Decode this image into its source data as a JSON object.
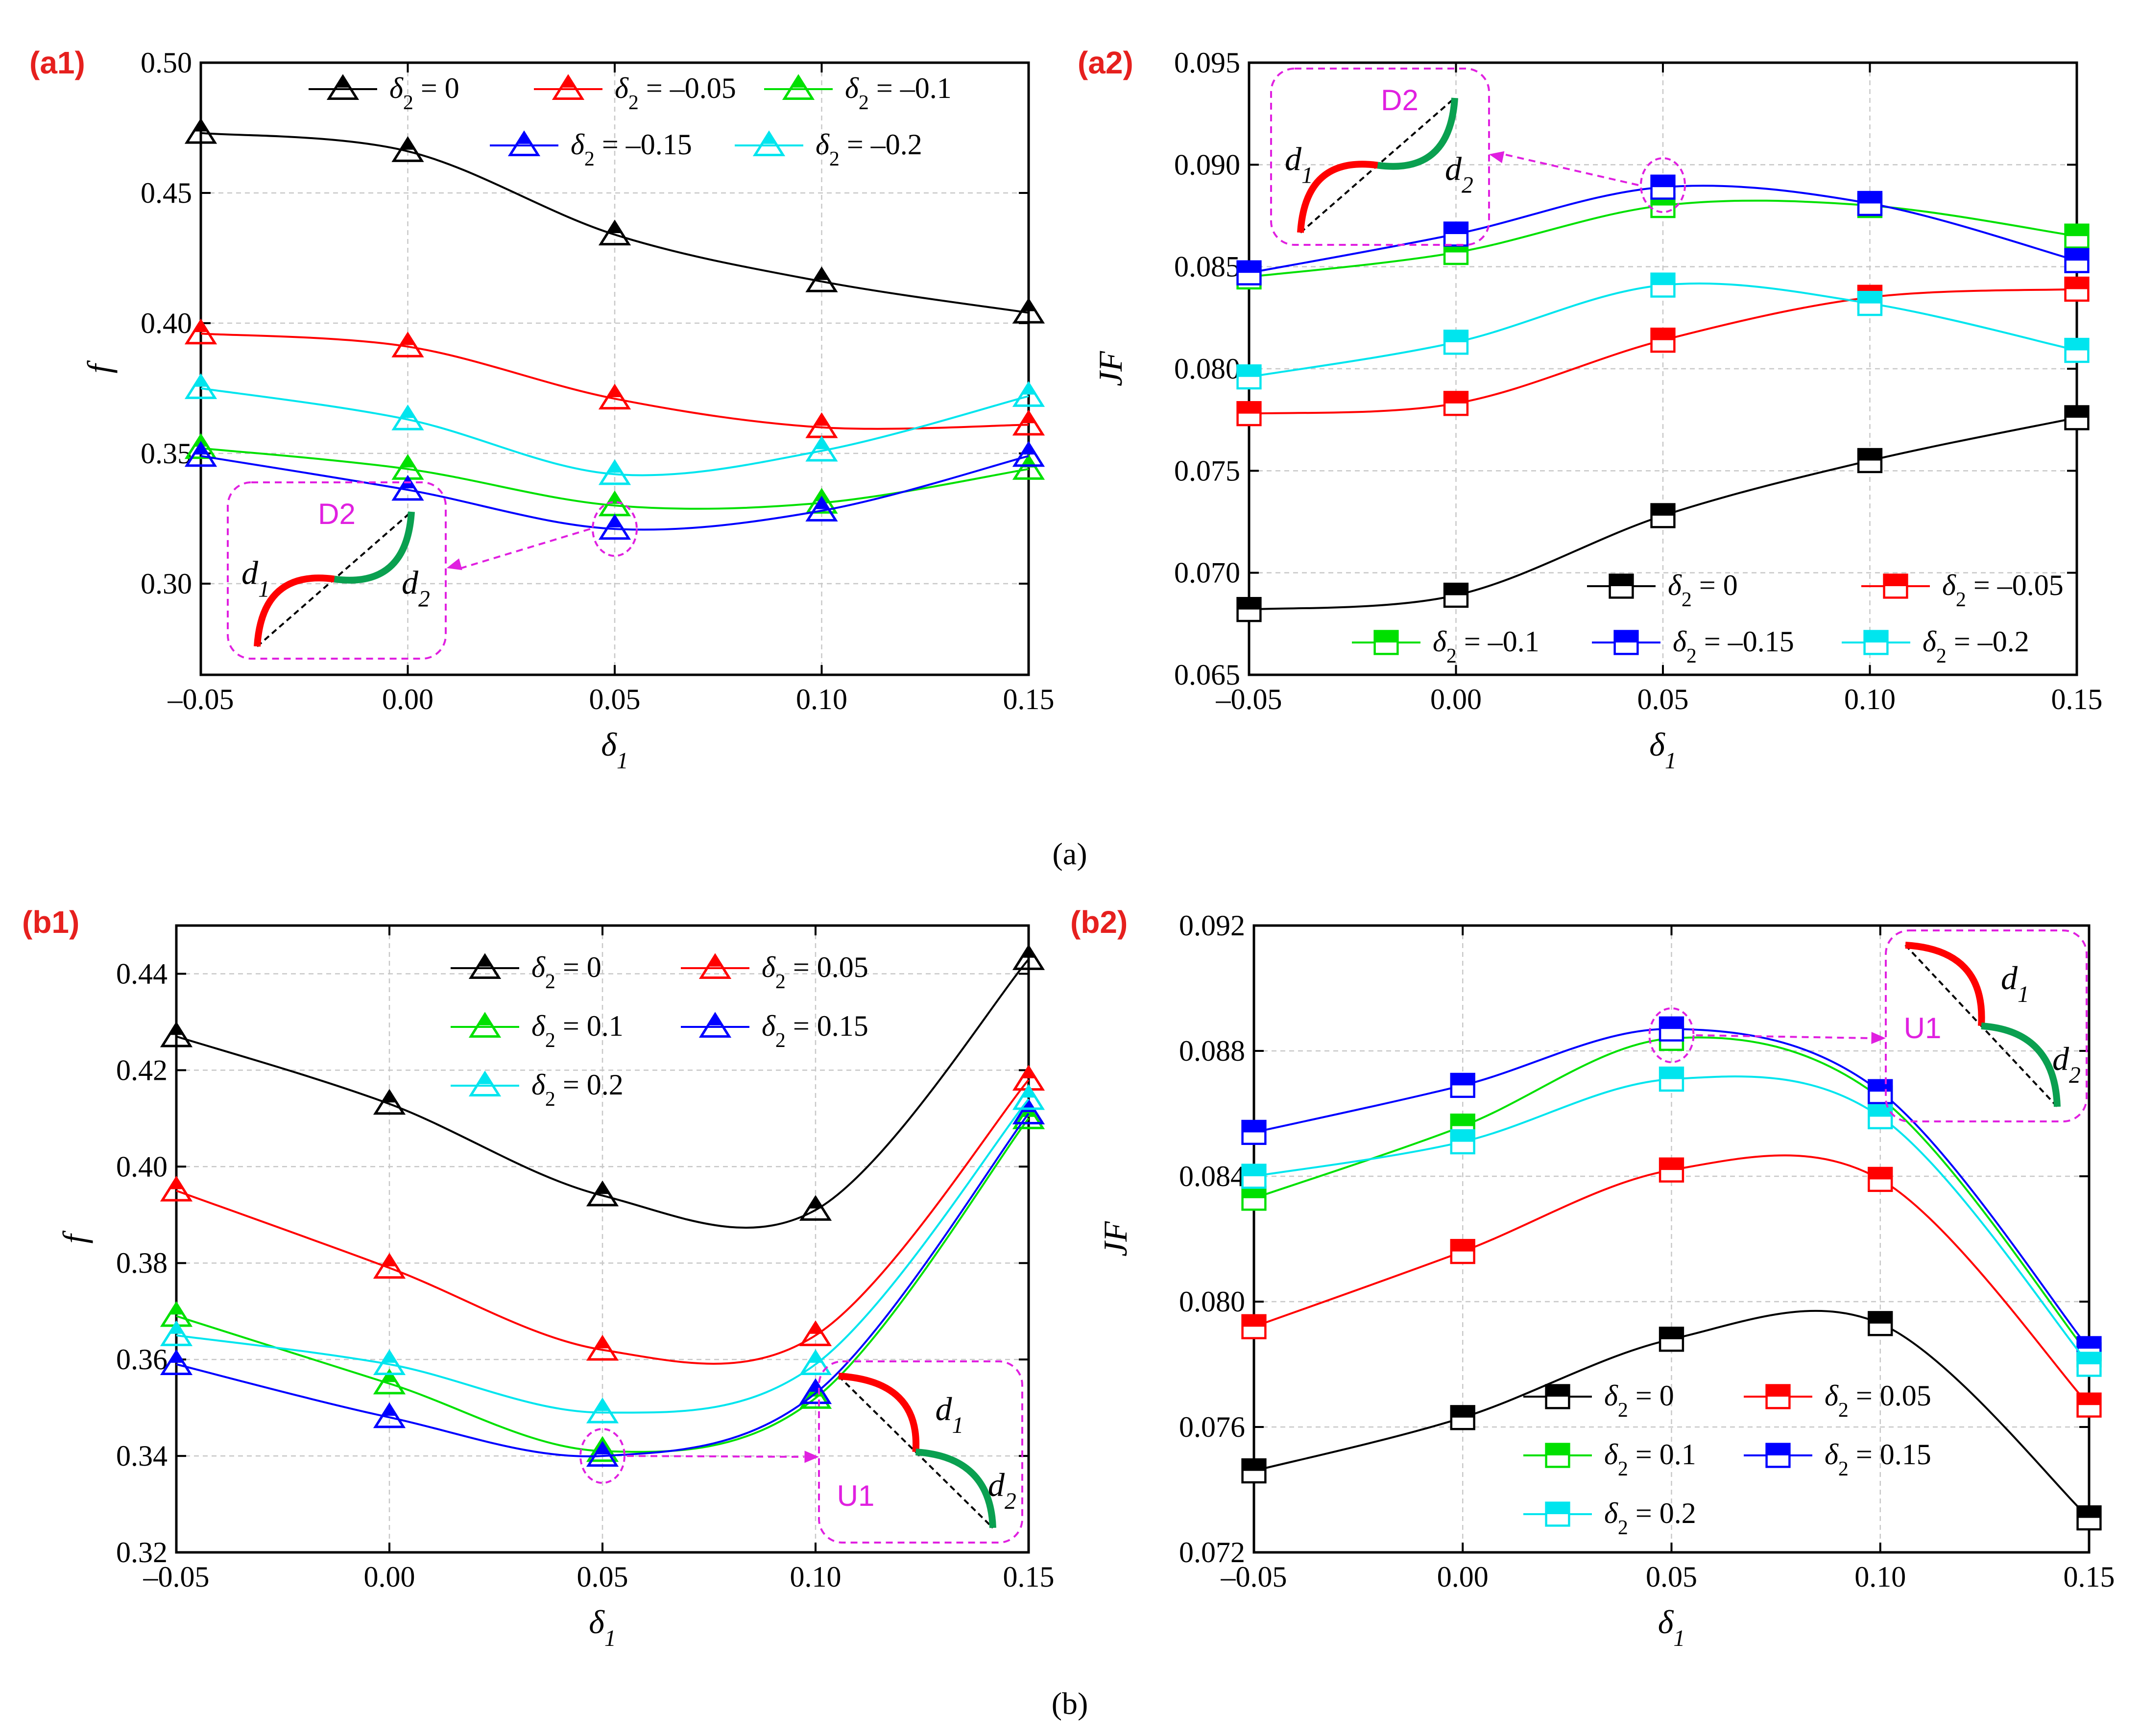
{
  "caption_a": "(a)",
  "caption_b": "(b)",
  "chart_data": [
    {
      "id": "a1",
      "type": "line",
      "panel_label": "(a1)",
      "xlabel": "δ1",
      "ylabel": "f",
      "x": [
        -0.05,
        0.0,
        0.05,
        0.1,
        0.15
      ],
      "xlim": [
        -0.05,
        0.15
      ],
      "ylim": [
        0.265,
        0.5
      ],
      "xticks": [
        -0.05,
        0.0,
        0.05,
        0.1,
        0.15
      ],
      "xtick_labels": [
        "–0.05",
        "0.00",
        "0.05",
        "0.10",
        "0.15"
      ],
      "yticks": [
        0.3,
        0.35,
        0.4,
        0.45,
        0.5
      ],
      "ytick_labels": [
        "0.30",
        "0.35",
        "0.40",
        "0.45",
        "0.50"
      ],
      "marker": "triangle",
      "series": [
        {
          "name": "δ2 = 0",
          "legend_prefix": "δ",
          "legend_sub": "2",
          "legend_suffix": " = 0",
          "color": "#000000",
          "values": [
            0.473,
            0.466,
            0.434,
            0.416,
            0.404
          ]
        },
        {
          "name": "δ2 = –0.05",
          "legend_prefix": "δ",
          "legend_sub": "2",
          "legend_suffix": " = –0.05",
          "color": "#ff0000",
          "values": [
            0.396,
            0.391,
            0.371,
            0.36,
            0.361
          ]
        },
        {
          "name": "δ2 = –0.1",
          "legend_prefix": "δ",
          "legend_sub": "2",
          "legend_suffix": " = –0.1",
          "color": "#00e000",
          "values": [
            0.352,
            0.344,
            0.33,
            0.331,
            0.344
          ]
        },
        {
          "name": "δ2 = –0.15",
          "legend_prefix": "δ",
          "legend_sub": "2",
          "legend_suffix": " = –0.15",
          "color": "#0000ff",
          "values": [
            0.349,
            0.336,
            0.321,
            0.328,
            0.349
          ]
        },
        {
          "name": "δ2 = –0.2",
          "legend_prefix": "δ",
          "legend_sub": "2",
          "legend_suffix": " = –0.2",
          "color": "#00e5ee",
          "values": [
            0.375,
            0.363,
            0.342,
            0.351,
            0.372
          ]
        }
      ],
      "inset": {
        "label": "D2",
        "var1": "d",
        "var1_sub": "1",
        "var2": "d",
        "var2_sub": "2"
      }
    },
    {
      "id": "a2",
      "type": "line",
      "panel_label": "(a2)",
      "xlabel": "δ1",
      "ylabel": "JF",
      "x": [
        -0.05,
        0.0,
        0.05,
        0.1,
        0.15
      ],
      "xlim": [
        -0.05,
        0.15
      ],
      "ylim": [
        0.065,
        0.095
      ],
      "xticks": [
        -0.05,
        0.0,
        0.05,
        0.1,
        0.15
      ],
      "xtick_labels": [
        "–0.05",
        "0.00",
        "0.05",
        "0.10",
        "0.15"
      ],
      "yticks": [
        0.065,
        0.07,
        0.075,
        0.08,
        0.085,
        0.09,
        0.095
      ],
      "ytick_labels": [
        "0.065",
        "0.070",
        "0.075",
        "0.080",
        "0.085",
        "0.090",
        "0.095"
      ],
      "marker": "square",
      "series": [
        {
          "name": "δ2 = 0",
          "legend_prefix": "δ",
          "legend_sub": "2",
          "legend_suffix": " = 0",
          "color": "#000000",
          "values": [
            0.0682,
            0.0689,
            0.0728,
            0.0755,
            0.0776
          ]
        },
        {
          "name": "δ2 = –0.05",
          "legend_prefix": "δ",
          "legend_sub": "2",
          "legend_suffix": " = –0.05",
          "color": "#ff0000",
          "values": [
            0.0778,
            0.0783,
            0.0814,
            0.0835,
            0.0839
          ]
        },
        {
          "name": "δ2 = –0.1",
          "legend_prefix": "δ",
          "legend_sub": "2",
          "legend_suffix": " = –0.1",
          "color": "#00e000",
          "values": [
            0.0845,
            0.0857,
            0.088,
            0.088,
            0.0865
          ]
        },
        {
          "name": "δ2 = –0.15",
          "legend_prefix": "δ",
          "legend_sub": "2",
          "legend_suffix": " = –0.15",
          "color": "#0000ff",
          "values": [
            0.0847,
            0.0866,
            0.0889,
            0.0881,
            0.0853
          ]
        },
        {
          "name": "δ2 = –0.2",
          "legend_prefix": "δ",
          "legend_sub": "2",
          "legend_suffix": " = –0.2",
          "color": "#00e5ee",
          "values": [
            0.0796,
            0.0813,
            0.0841,
            0.0832,
            0.0809
          ]
        }
      ],
      "inset": {
        "label": "D2",
        "var1": "d",
        "var1_sub": "1",
        "var2": "d",
        "var2_sub": "2"
      }
    },
    {
      "id": "b1",
      "type": "line",
      "panel_label": "(b1)",
      "xlabel": "δ1",
      "ylabel": "f",
      "x": [
        -0.05,
        0.0,
        0.05,
        0.1,
        0.15
      ],
      "xlim": [
        -0.05,
        0.15
      ],
      "ylim": [
        0.32,
        0.45
      ],
      "xticks": [
        -0.05,
        0.0,
        0.05,
        0.1,
        0.15
      ],
      "xtick_labels": [
        "–0.05",
        "0.00",
        "0.05",
        "0.10",
        "0.15"
      ],
      "yticks": [
        0.32,
        0.34,
        0.36,
        0.38,
        0.4,
        0.42,
        0.44
      ],
      "ytick_labels": [
        "0.32",
        "0.34",
        "0.36",
        "0.38",
        "0.40",
        "0.42",
        "0.44"
      ],
      "marker": "triangle",
      "series": [
        {
          "name": "δ2 = 0",
          "legend_prefix": "δ",
          "legend_sub": "2",
          "legend_suffix": " = 0",
          "color": "#000000",
          "values": [
            0.427,
            0.413,
            0.394,
            0.391,
            0.443
          ]
        },
        {
          "name": "δ2 = 0.05",
          "legend_prefix": "δ",
          "legend_sub": "2",
          "legend_suffix": " = 0.05",
          "color": "#ff0000",
          "values": [
            0.395,
            0.379,
            0.362,
            0.365,
            0.418
          ]
        },
        {
          "name": "δ2 = 0.1",
          "legend_prefix": "δ",
          "legend_sub": "2",
          "legend_suffix": " = 0.1",
          "color": "#00e000",
          "values": [
            0.369,
            0.355,
            0.341,
            0.352,
            0.41
          ]
        },
        {
          "name": "δ2 = 0.15",
          "legend_prefix": "δ",
          "legend_sub": "2",
          "legend_suffix": " = 0.15",
          "color": "#0000ff",
          "values": [
            0.359,
            0.348,
            0.34,
            0.353,
            0.411
          ]
        },
        {
          "name": "δ2 = 0.2",
          "legend_prefix": "δ",
          "legend_sub": "2",
          "legend_suffix": " = 0.2",
          "color": "#00e5ee",
          "values": [
            0.365,
            0.359,
            0.349,
            0.359,
            0.414
          ]
        }
      ],
      "inset": {
        "label": "U1",
        "var1": "d",
        "var1_sub": "1",
        "var2": "d",
        "var2_sub": "2"
      }
    },
    {
      "id": "b2",
      "type": "line",
      "panel_label": "(b2)",
      "xlabel": "δ1",
      "ylabel": "JF",
      "x": [
        -0.05,
        0.0,
        0.05,
        0.1,
        0.15
      ],
      "xlim": [
        -0.05,
        0.15
      ],
      "ylim": [
        0.072,
        0.092
      ],
      "xticks": [
        -0.05,
        0.0,
        0.05,
        0.1,
        0.15
      ],
      "xtick_labels": [
        "–0.05",
        "0.00",
        "0.05",
        "0.10",
        "0.15"
      ],
      "yticks": [
        0.072,
        0.076,
        0.08,
        0.084,
        0.088,
        0.092
      ],
      "ytick_labels": [
        "0.072",
        "0.076",
        "0.080",
        "0.084",
        "0.088",
        "0.092"
      ],
      "marker": "square",
      "series": [
        {
          "name": "δ2 = 0",
          "legend_prefix": "δ",
          "legend_sub": "2",
          "legend_suffix": " = 0",
          "color": "#000000",
          "values": [
            0.0746,
            0.0763,
            0.0788,
            0.0793,
            0.0731
          ]
        },
        {
          "name": "δ2 = 0.05",
          "legend_prefix": "δ",
          "legend_sub": "2",
          "legend_suffix": " = 0.05",
          "color": "#ff0000",
          "values": [
            0.0792,
            0.0816,
            0.0842,
            0.0839,
            0.0767
          ]
        },
        {
          "name": "δ2 = 0.1",
          "legend_prefix": "δ",
          "legend_sub": "2",
          "legend_suffix": " = 0.1",
          "color": "#00e000",
          "values": [
            0.0833,
            0.0856,
            0.0884,
            0.0865,
            0.0783
          ]
        },
        {
          "name": "δ2 = 0.15",
          "legend_prefix": "δ",
          "legend_sub": "2",
          "legend_suffix": " = 0.15",
          "color": "#0000ff",
          "values": [
            0.0854,
            0.0869,
            0.0887,
            0.0867,
            0.0785
          ]
        },
        {
          "name": "δ2 = 0.2",
          "legend_prefix": "δ",
          "legend_sub": "2",
          "legend_suffix": " = 0.2",
          "color": "#00e5ee",
          "values": [
            0.084,
            0.0851,
            0.0871,
            0.0859,
            0.078
          ]
        }
      ],
      "inset": {
        "label": "U1",
        "var1": "d",
        "var1_sub": "1",
        "var2": "d",
        "var2_sub": "2"
      }
    }
  ]
}
